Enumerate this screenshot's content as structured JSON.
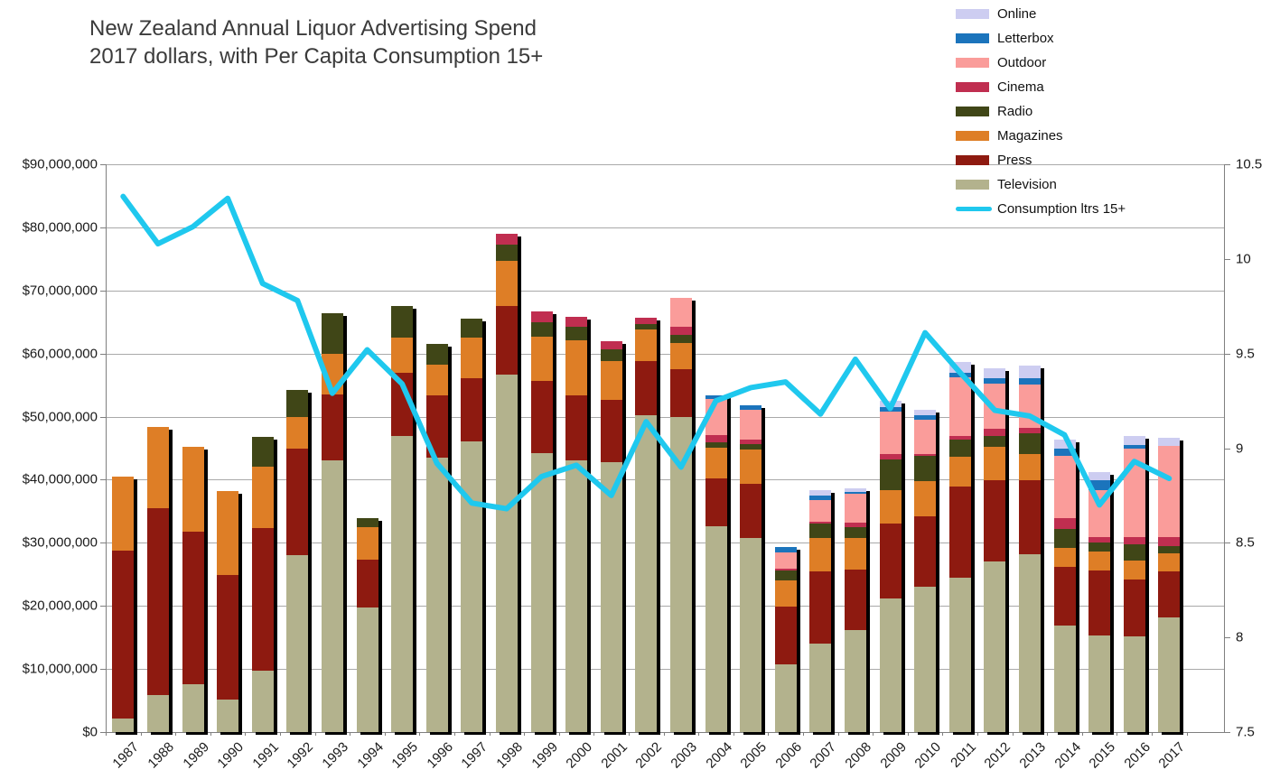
{
  "title": {
    "line1": "New Zealand Annual Liquor Advertising Spend",
    "line2": "2017 dollars, with Per Capita Consumption 15+"
  },
  "colors": {
    "online": "#cdcdf1",
    "letterbox": "#1b74bc",
    "outdoor": "#fa9c9a",
    "cinema": "#c02e50",
    "radio": "#404617",
    "magazines": "#de7e26",
    "press": "#8e1a10",
    "television": "#b3b28d",
    "consumption_line": "#1fc8ee",
    "gridline": "#a9a9a9",
    "axis": "#7f7f7f",
    "bar_shadow": "#000000"
  },
  "chart_data": {
    "type": "bar",
    "subtype": "stacked-bars-with-line-overlay",
    "title": "New Zealand Annual Liquor Advertising Spend 2017 dollars, with Per Capita Consumption 15+",
    "categories": [
      1987,
      1988,
      1989,
      1990,
      1991,
      1992,
      1993,
      1994,
      1995,
      1996,
      1997,
      1998,
      1999,
      2000,
      2001,
      2002,
      2003,
      2004,
      2005,
      2006,
      2007,
      2008,
      2009,
      2010,
      2011,
      2012,
      2013,
      2014,
      2015,
      2016,
      2017
    ],
    "bar_unit": "NZD millions (2017 dollars)",
    "stack_order_bottom_to_top": [
      "Television",
      "Press",
      "Magazines",
      "Radio",
      "Cinema",
      "Outdoor",
      "Letterbox",
      "Online"
    ],
    "series": [
      {
        "name": "Television",
        "color": "#b3b28d",
        "values_millions": [
          2.2,
          5.9,
          7.6,
          5.2,
          9.7,
          28.0,
          43.1,
          19.7,
          46.9,
          43.5,
          46.0,
          56.6,
          44.2,
          43.1,
          42.8,
          50.2,
          49.9,
          32.6,
          30.8,
          10.7,
          14.0,
          16.2,
          21.2,
          23.0,
          24.5,
          27.0,
          28.2,
          16.9,
          15.3,
          15.2,
          18.2
        ]
      },
      {
        "name": "Press",
        "color": "#8e1a10",
        "values_millions": [
          26.6,
          29.6,
          24.2,
          19.7,
          22.6,
          16.9,
          10.4,
          7.6,
          10.0,
          9.9,
          10.1,
          10.9,
          11.5,
          10.3,
          9.8,
          8.6,
          7.6,
          7.6,
          8.5,
          9.2,
          11.5,
          9.6,
          11.8,
          11.2,
          14.4,
          12.9,
          11.7,
          9.3,
          10.3,
          9.0,
          7.3
        ]
      },
      {
        "name": "Magazines",
        "color": "#de7e26",
        "values_millions": [
          11.7,
          12.9,
          13.4,
          13.3,
          9.8,
          5.0,
          6.4,
          5.2,
          5.6,
          4.9,
          6.4,
          7.2,
          7.0,
          8.7,
          6.2,
          5.0,
          4.2,
          4.9,
          5.5,
          4.1,
          5.3,
          5.0,
          5.3,
          5.6,
          4.7,
          5.3,
          4.2,
          3.0,
          3.0,
          3.0,
          2.8
        ]
      },
      {
        "name": "Radio",
        "color": "#404617",
        "values_millions": [
          0,
          0,
          0,
          0,
          4.7,
          4.3,
          6.5,
          1.4,
          5.0,
          3.2,
          3.0,
          2.5,
          2.2,
          2.1,
          1.9,
          0.9,
          1.2,
          0.8,
          0.8,
          1.6,
          2.2,
          1.7,
          4.9,
          4.0,
          2.8,
          1.7,
          3.3,
          3.0,
          1.4,
          2.5,
          1.2
        ]
      },
      {
        "name": "Cinema",
        "color": "#c02e50",
        "values_millions": [
          0,
          0,
          0,
          0,
          0,
          0,
          0,
          0,
          0,
          0,
          0,
          1.8,
          1.8,
          1.6,
          1.2,
          1.0,
          1.3,
          1.2,
          0.8,
          0.3,
          0.3,
          0.7,
          0.9,
          0.3,
          0.5,
          1.2,
          0.8,
          1.7,
          0.9,
          1.2,
          1.4
        ]
      },
      {
        "name": "Outdoor",
        "color": "#fa9c9a",
        "values_millions": [
          0,
          0,
          0,
          0,
          0,
          0,
          0,
          0,
          0,
          0,
          0,
          0,
          0,
          0,
          0,
          0,
          4.6,
          5.7,
          4.7,
          2.6,
          3.5,
          4.6,
          6.7,
          5.4,
          9.3,
          7.1,
          6.9,
          9.9,
          7.4,
          14.0,
          14.4
        ]
      },
      {
        "name": "Letterbox",
        "color": "#1b74bc",
        "values_millions": [
          0,
          0,
          0,
          0,
          0,
          0,
          0,
          0,
          0,
          0,
          0,
          0,
          0,
          0,
          0,
          0,
          0,
          0.6,
          0.7,
          0.9,
          0.7,
          0.2,
          0.7,
          0.7,
          0.7,
          0.9,
          1.0,
          1.1,
          1.6,
          0.6,
          0
        ]
      },
      {
        "name": "Online",
        "color": "#cdcdf1",
        "values_millions": [
          0,
          0,
          0,
          0,
          0,
          0,
          0,
          0,
          0,
          0,
          0,
          0,
          0,
          0,
          0,
          0,
          0,
          0,
          0,
          0,
          0.8,
          0.6,
          1.0,
          0.9,
          1.8,
          1.6,
          2.0,
          1.5,
          1.3,
          1.4,
          1.3
        ]
      }
    ],
    "line_series": {
      "name": "Consumption ltrs 15+",
      "color": "#1fc8ee",
      "unit": "litres per capita (15+)",
      "values": [
        10.33,
        10.08,
        10.17,
        10.32,
        9.87,
        9.78,
        9.29,
        9.52,
        9.34,
        8.92,
        8.71,
        8.68,
        8.85,
        8.91,
        8.75,
        9.14,
        8.9,
        9.25,
        9.32,
        9.35,
        9.18,
        9.47,
        9.21,
        9.61,
        9.4,
        9.2,
        9.17,
        9.07,
        8.7,
        8.93,
        8.84
      ]
    },
    "left_axis": {
      "range_dollars": [
        0,
        90000000
      ],
      "tick_step_dollars": 10000000,
      "tick_labels": [
        "$0",
        "$10,000,000",
        "$20,000,000",
        "$30,000,000",
        "$40,000,000",
        "$50,000,000",
        "$60,000,000",
        "$70,000,000",
        "$80,000,000",
        "$90,000,000"
      ]
    },
    "right_axis": {
      "range": [
        7.5,
        10.5
      ],
      "tick_step": 0.5,
      "tick_labels": [
        "7.5",
        "8",
        "8.5",
        "9",
        "9.5",
        "10",
        "10.5"
      ]
    },
    "legend_order_top_to_bottom": [
      "Online",
      "Letterbox",
      "Outdoor",
      "Cinema",
      "Radio",
      "Magazines",
      "Press",
      "Television",
      "Consumption ltrs 15+"
    ],
    "grid": "horizontal gridlines at each $10,000,000",
    "legend_position": "top-right"
  }
}
